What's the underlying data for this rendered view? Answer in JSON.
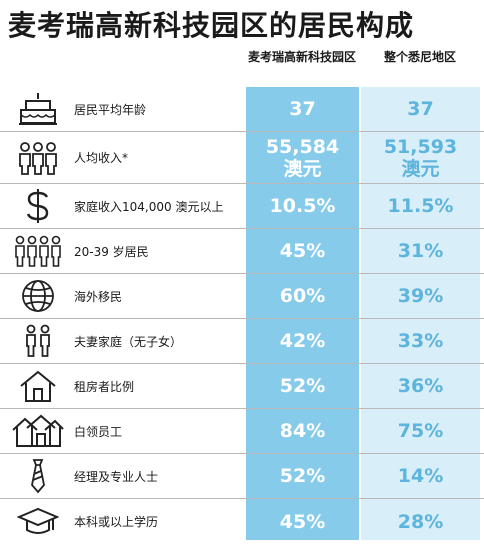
{
  "title": "麦考瑞高新科技园区的居民构成",
  "columns": {
    "a": "麦考瑞高新科技园区",
    "b": "整个悉尼地区"
  },
  "colors": {
    "column_a_bg": "#87cbeb",
    "column_b_bg": "#d8eef8",
    "column_b_text": "#5db4dc"
  },
  "rows": [
    {
      "icon": "birthday-cake-icon",
      "label": "居民平均年龄",
      "a": "37",
      "b": "37"
    },
    {
      "icon": "people-group-icon",
      "label": "人均收入*",
      "a": "55,584\n澳元",
      "b": "51,593\n澳元"
    },
    {
      "icon": "dollar-sign-icon",
      "label": "家庭收入104,000 澳元以上",
      "a": "10.5%",
      "b": "11.5%"
    },
    {
      "icon": "young-people-icon",
      "label": "20-39 岁居民",
      "a": "45%",
      "b": "31%"
    },
    {
      "icon": "globe-icon",
      "label": "海外移民",
      "a": "60%",
      "b": "39%"
    },
    {
      "icon": "couple-icon",
      "label": "夫妻家庭（无子女）",
      "a": "42%",
      "b": "33%"
    },
    {
      "icon": "house-icon",
      "label": "租房者比例",
      "a": "52%",
      "b": "36%"
    },
    {
      "icon": "houses-icon",
      "label": "白领员工",
      "a": "84%",
      "b": "75%"
    },
    {
      "icon": "necktie-icon",
      "label": "经理及专业人士",
      "a": "52%",
      "b": "14%"
    },
    {
      "icon": "graduation-cap-icon",
      "label": "本科或以上学历",
      "a": "45%",
      "b": "28%"
    }
  ]
}
